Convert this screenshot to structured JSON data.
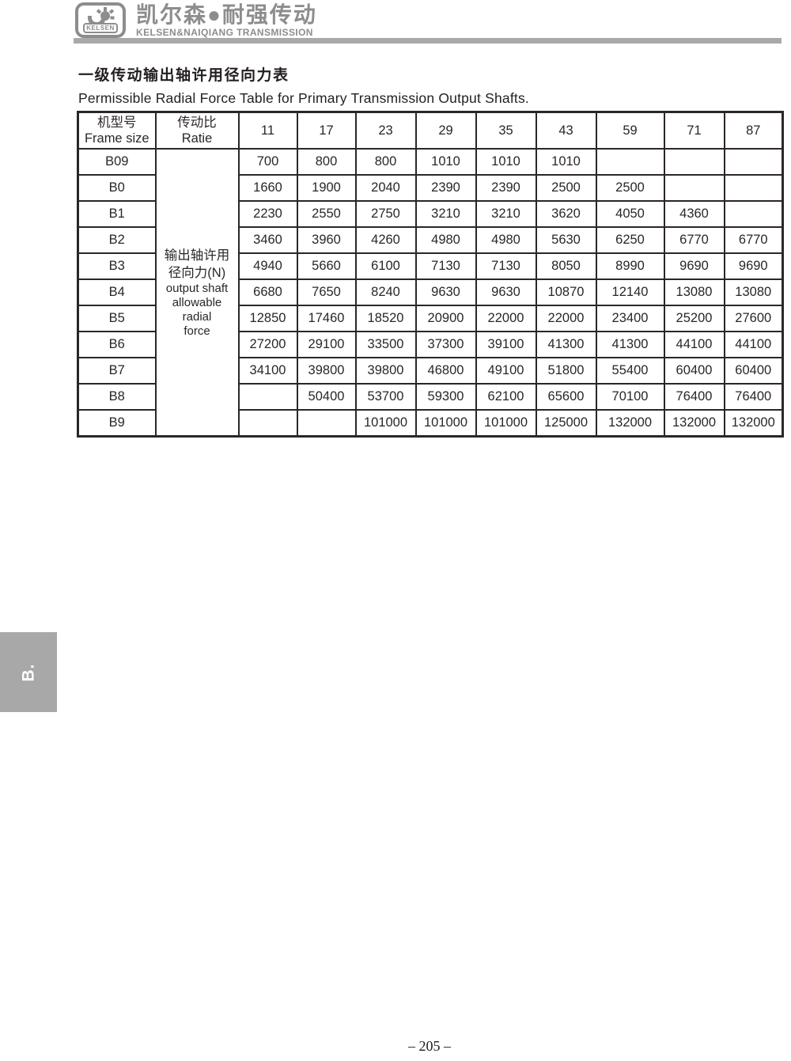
{
  "brand": {
    "logo_text": "KELSEN",
    "name_zh": "凯尔森●耐强传动",
    "name_en": "KELSEN&NAIQIANG TRANSMISSION"
  },
  "title": {
    "zh": "一级传动输出轴许用径向力表",
    "en": "Permissible Radial Force Table for  Primary Transmission Output Shafts."
  },
  "table": {
    "header": {
      "frame_size_zh": "机型号",
      "frame_size_en": "Frame size",
      "ratio_zh": "传动比",
      "ratio_en": "Ratie",
      "ratios": [
        "11",
        "17",
        "23",
        "29",
        "35",
        "43",
        "59",
        "71",
        "87"
      ]
    },
    "merged_cell_lines": [
      "输出轴许用",
      "径向力(N)",
      "output shaft",
      "allowable radial",
      "force"
    ],
    "rows": [
      {
        "frame": "B09",
        "values": [
          "700",
          "800",
          "800",
          "1010",
          "1010",
          "1010",
          "",
          "",
          ""
        ]
      },
      {
        "frame": "B0",
        "values": [
          "1660",
          "1900",
          "2040",
          "2390",
          "2390",
          "2500",
          "2500",
          "",
          ""
        ]
      },
      {
        "frame": "B1",
        "values": [
          "2230",
          "2550",
          "2750",
          "3210",
          "3210",
          "3620",
          "4050",
          "4360",
          ""
        ]
      },
      {
        "frame": "B2",
        "values": [
          "3460",
          "3960",
          "4260",
          "4980",
          "4980",
          "5630",
          "6250",
          "6770",
          "6770"
        ]
      },
      {
        "frame": "B3",
        "values": [
          "4940",
          "5660",
          "6100",
          "7130",
          "7130",
          "8050",
          "8990",
          "9690",
          "9690"
        ]
      },
      {
        "frame": "B4",
        "values": [
          "6680",
          "7650",
          "8240",
          "9630",
          "9630",
          "10870",
          "12140",
          "13080",
          "13080"
        ]
      },
      {
        "frame": "B5",
        "values": [
          "12850",
          "17460",
          "18520",
          "20900",
          "22000",
          "22000",
          "23400",
          "25200",
          "27600"
        ]
      },
      {
        "frame": "B6",
        "values": [
          "27200",
          "29100",
          "33500",
          "37300",
          "39100",
          "41300",
          "41300",
          "44100",
          "44100"
        ]
      },
      {
        "frame": "B7",
        "values": [
          "34100",
          "39800",
          "39800",
          "46800",
          "49100",
          "51800",
          "55400",
          "60400",
          "60400"
        ]
      },
      {
        "frame": "B8",
        "values": [
          "",
          "50400",
          "53700",
          "59300",
          "62100",
          "65600",
          "70100",
          "76400",
          "76400"
        ]
      },
      {
        "frame": "B9",
        "values": [
          "",
          "",
          "101000",
          "101000",
          "101000",
          "125000",
          "132000",
          "132000",
          "132000"
        ]
      }
    ]
  },
  "sidebar_tab": {
    "label": "B."
  },
  "footer": {
    "page_number": "– 205 –"
  },
  "colors": {
    "brand_gray": "#8d8d8d",
    "bar_gray": "#a9a9a9",
    "tab_gray": "#a8a8a8",
    "table_border": "#2b2627",
    "text": "#231f20"
  }
}
